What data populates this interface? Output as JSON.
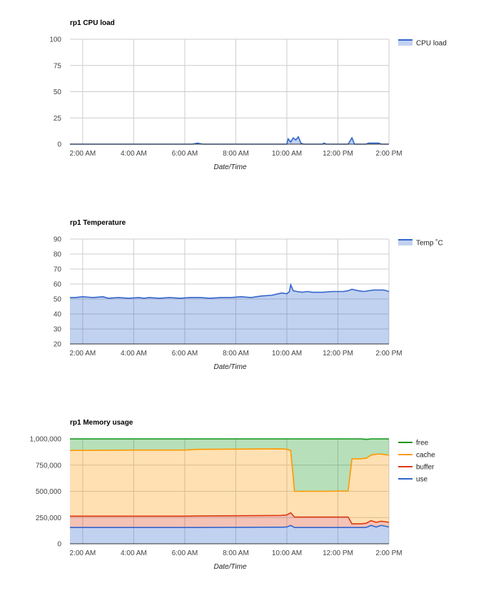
{
  "chart_data": [
    {
      "type": "area",
      "title": "rp1 CPU load",
      "xlabel": "Date/Time",
      "ylabel": "",
      "xlim": [
        1.5,
        14.0
      ],
      "ylim": [
        0,
        100
      ],
      "yticks": [
        "0",
        "25",
        "50",
        "75",
        "100"
      ],
      "ytick_values": [
        0,
        25,
        50,
        75,
        100
      ],
      "legend": "right",
      "grid": true,
      "series": [
        {
          "name": "CPU load",
          "color": "#3366cc",
          "x": [
            1.5,
            6.3,
            6.5,
            6.7,
            10.0,
            10.05,
            10.15,
            10.25,
            10.35,
            10.45,
            10.55,
            10.65,
            10.75,
            11.4,
            11.45,
            11.55,
            12.4,
            12.55,
            12.65,
            12.75,
            13.1,
            13.2,
            13.6,
            13.7,
            14.0
          ],
          "y": [
            0,
            0,
            1,
            0,
            0,
            5,
            2,
            6,
            4,
            7,
            1,
            0,
            0,
            0,
            1,
            0,
            0,
            6,
            0,
            0,
            0,
            1,
            1,
            0,
            0
          ]
        }
      ]
    },
    {
      "type": "area",
      "title": "rp1 Temperature",
      "xlabel": "Date/Time",
      "ylabel": "",
      "xlim": [
        1.5,
        14.0
      ],
      "ylim": [
        20,
        90
      ],
      "yticks": [
        "20",
        "30",
        "40",
        "50",
        "60",
        "70",
        "80",
        "90"
      ],
      "ytick_values": [
        20,
        30,
        40,
        50,
        60,
        70,
        80,
        90
      ],
      "legend": "right",
      "grid": true,
      "series": [
        {
          "name": "Temp ˚C",
          "color": "#3366cc",
          "x": [
            1.5,
            1.7,
            2.0,
            2.4,
            2.8,
            3.0,
            3.4,
            3.8,
            4.2,
            4.4,
            4.6,
            5.0,
            5.4,
            5.8,
            6.2,
            6.6,
            7.0,
            7.4,
            7.8,
            8.2,
            8.6,
            9.0,
            9.4,
            9.8,
            10.0,
            10.1,
            10.15,
            10.25,
            10.4,
            10.6,
            10.8,
            11.0,
            11.4,
            11.8,
            12.2,
            12.4,
            12.55,
            12.8,
            13.0,
            13.4,
            13.8,
            14.0
          ],
          "y": [
            51,
            51,
            51.5,
            51,
            51.5,
            50.5,
            51,
            50.5,
            51,
            50.5,
            51,
            50.5,
            51,
            50.5,
            51,
            51,
            50.5,
            51,
            51,
            51.5,
            51,
            52,
            52.5,
            54,
            53.5,
            55,
            59.5,
            55.5,
            55,
            54.5,
            55,
            54.5,
            54.5,
            55,
            55,
            55.5,
            56.5,
            55.5,
            55,
            56,
            56,
            55
          ]
        }
      ]
    },
    {
      "type": "area",
      "title": "rp1 Memory usage",
      "xlabel": "Date/Time",
      "ylabel": "",
      "xlim": [
        1.5,
        14.0
      ],
      "ylim": [
        0,
        1000000
      ],
      "yticks": [
        "0",
        "250,000",
        "500,000",
        "750,000",
        "1,000,000"
      ],
      "ytick_values": [
        0,
        250000,
        500000,
        750000,
        1000000
      ],
      "legend": "right",
      "grid": true,
      "stacked": true,
      "x": [
        1.5,
        4.0,
        6.0,
        6.5,
        9.8,
        10.0,
        10.15,
        10.3,
        10.5,
        11.5,
        12.4,
        12.55,
        12.9,
        13.1,
        13.3,
        13.5,
        13.7,
        14.0
      ],
      "series": [
        {
          "name": "use",
          "color": "#3366cc",
          "y": [
            155000,
            155000,
            155000,
            155000,
            158000,
            160000,
            175000,
            155000,
            155000,
            155000,
            155000,
            155000,
            155000,
            155000,
            175000,
            160000,
            175000,
            160000
          ]
        },
        {
          "name": "buffer",
          "color": "#dc3912",
          "y": [
            108000,
            108000,
            108000,
            110000,
            112000,
            115000,
            120000,
            100000,
            100000,
            100000,
            100000,
            35000,
            35000,
            40000,
            45000,
            45000,
            40000,
            45000
          ]
        },
        {
          "name": "cache",
          "color": "#ff9900",
          "y": [
            627000,
            630000,
            630000,
            635000,
            635000,
            625000,
            595000,
            245000,
            245000,
            245000,
            248000,
            620000,
            620000,
            620000,
            625000,
            650000,
            640000,
            640000
          ]
        },
        {
          "name": "free",
          "color": "#109618",
          "y": [
            110000,
            107000,
            107000,
            100000,
            95000,
            100000,
            110000,
            500000,
            500000,
            500000,
            497000,
            190000,
            190000,
            180000,
            155000,
            145000,
            145000,
            155000
          ]
        }
      ]
    }
  ],
  "x_tick_values": [
    2,
    4,
    6,
    8,
    10,
    12,
    14
  ],
  "x_tick_labels": [
    "2:00 AM",
    "4:00 AM",
    "6:00 AM",
    "8:00 AM",
    "10:00 AM",
    "12:00 PM",
    "2:00 PM"
  ]
}
